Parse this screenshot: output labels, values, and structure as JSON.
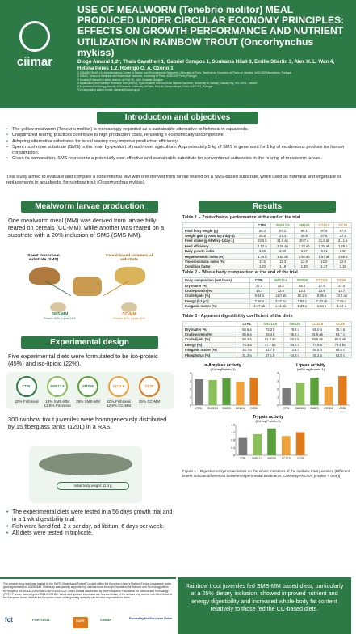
{
  "header": {
    "title": "USE OF MEALWORM (Tenebrio molitor) MEAL PRODUCED UNDER CIRCULAR ECONOMY PRINCIPLES: EFFECTS ON GROWTH PERFORMANCE AND NUTRIENT UTILIZATION IN RAINBOW TROUT (Oncorhynchus mykiss)",
    "authors": "Diogo Amaral 1,2*, Thais Cavalheri 1, Gabriel Campos 1, Soukaina Hilali 3, Emilie Stierlin 3, Alex H. L. Wan 4, Helena Peres 1,2, Rodrigo O. A. Ozório 1",
    "affiliations": [
      "1 CIIMAR/CIMAR LA, Interdisciplinary Centre of Marine and Environmental Research, University of Porto, Terminal de Cruzeiros do Porto de Leixões, 4450-208 Matosinhos, Portugal",
      "2 ICBAS, School of Medicine and Biomedical Sciences, University of Porto, 4050-097 Porto, Portugal",
      "3 Ecodesi, Research Center, Avenue du Port 36, 4000 Chatelet, Belgium",
      "4 Aquaculture and Nutrition Research Unit (ANRU), Ryan Institute and School of Natural Sciences, University of Galway, Galway city, H91 V8Y1, Ireland",
      "5 Department of Biology, Faculty of Sciences, University of Porto, Rua do Campo Alegre, Porto 4169-007, Portugal",
      "*Corresponding author e-mail: damaral@ciimar.up.pt"
    ],
    "logo": "ciimar"
  },
  "intro": {
    "title": "Introduction and objectives",
    "bullets": [
      "The yellow mealworm (Tenebrio molitor) is increasingly regarded as a sustainable alternative to fishmeal in aquafeeds.",
      "Unoptimized rearing practices contribute to high production costs, rendering it economically uncompetitive.",
      "Adopting alternative substrates for larval rearing may improve production efficiency.",
      "Spent mushroom substrate (SMS) is the main by-product of mushroom agriculture. Approximately 5 kg of SMS is generated for 1 kg of mushrooms produce for human consumption.",
      "Given its composition, SMS represents a potentially cost-effective and sustainable substitute for conventional substrates in the rearing of mealworm larvae."
    ],
    "aim": "This study aimed to evaluate and compare a conventional MM with one derived from larvae reared on a SMS-based substrate, when used as fishmeal and vegetable oil replacements in aquafeeds, for rainbow trout (Oncorhynchus mykiss)."
  },
  "larvae": {
    "title": "Mealworm larvae production",
    "text": "One mealworm meal (MM) was derived from larvae fully reared on cereals (CC-MM), while another was reared on a substrate with a 20% inclusion of SMS (SMS-MM).",
    "sms_label": "Spent mushroom substrate (SMS)",
    "cereal_label": "Cereal-based commercial substrate",
    "sms_mm": "SMS-MM",
    "sms_mm_comp": "Protein 53%; Lipids 24%",
    "cc_mm": "CC-MM",
    "cc_mm_comp": "Protein 51%; Lipids 32%"
  },
  "design": {
    "title": "Experimental design",
    "text1": "Five experimental diets were formulated to be iso-proteic (45%) and iso-lipidic (22%).",
    "diets": [
      "CTRL",
      "SMS12.5",
      "SMS25",
      "CC12.5",
      "CC25"
    ],
    "diet_desc": [
      "20% Fishmeal",
      "10% SMS-MM 12.5% Fishmeal",
      "25% SMS-MM",
      "10% Fishmeal 12.5% CC-MM",
      "25% CC-MM"
    ],
    "text2": "300 rainbow trout juveniles were homogeneously distributed by 15 fiberglass tanks (120L) in a RAS.",
    "weight": "Initial body weight: 11.4 g",
    "bullets": [
      "The experimental diets were tested in a 56 days growth trial and in a 1 wk digestibility trial.",
      "Fish were hand fed, 2 x per day, ad libitum, 6 days per week.",
      "All diets were tested in triplicate."
    ]
  },
  "results": {
    "title": "Results",
    "columns": [
      "",
      "CTRL",
      "SMS12.5",
      "SMS25",
      "CC12.5",
      "CC25"
    ],
    "table1": {
      "title": "Table 1 – Zootechnical performance at the end of the trial",
      "rows": [
        [
          "Final body weight (g)",
          "80.3",
          "87.2",
          "80.1",
          "87.9",
          "87.5"
        ],
        [
          "Weight gain (g ABW kg-1 day-1)",
          "26.8",
          "27.4",
          "26.8",
          "27.5",
          "27.4"
        ],
        [
          "Feed intake (g ABW kg-1 day-1)",
          "23.5 b",
          "21.5 ab",
          "20.7 a",
          "21.8 ab",
          "21.1 a"
        ],
        [
          "Feed efficiency",
          "1.12 a",
          "1.28 ab",
          "1.28 ab",
          "1.25 ab",
          "1.29 b"
        ],
        [
          "Daily growth index",
          "3.68",
          "3.89",
          "3.67",
          "3.91",
          "3.90"
        ],
        [
          "Hepatosomatic index (%)",
          "1.79 b",
          "1.62 ab",
          "1.56 ab",
          "1.57 ab",
          "1.55 a"
        ],
        [
          "Viscerosomatic index (%)",
          "13.6",
          "13.3",
          "12.8",
          "12.8",
          "12.8"
        ],
        [
          "Condition factor",
          "1.23",
          "1.19",
          "1.20",
          "1.17",
          "1.18"
        ]
      ]
    },
    "table2": {
      "title": "Table 2 – Whole body composition at the end of the trial",
      "header0": "Body composition (wet basis)",
      "rows": [
        [
          "Dry matter (%)",
          "27.4",
          "28.2",
          "28.8",
          "27.6",
          "27.5"
        ],
        [
          "Crude protein (%)",
          "14.3",
          "13.9",
          "13.8",
          "13.9",
          "13.7"
        ],
        [
          "Crude lipids (%)",
          "9.84 a",
          "11.0 ab",
          "12.1 b",
          "9.95 a",
          "10.7 ab"
        ],
        [
          "Energy (kJ g-1)",
          "7.16 a",
          "7.57 bc",
          "7.82 c",
          "7.20 ab",
          "7.65 c"
        ],
        [
          "Inorganic matter (%)",
          "1.47 ab",
          "1.41 ab",
          "1.33 a",
          "1.54 b",
          "1.34 a"
        ]
      ]
    },
    "table3": {
      "title": "Table 3 - Apparent digestibility coefficient of the diets",
      "rows": [
        [
          "Dry matter (%)",
          "68.6 a",
          "73.3 b",
          "79.6 c",
          "69.0 a",
          "75.4 b"
        ],
        [
          "Crude protein (%)",
          "90.9 a",
          "93.4 b",
          "95.0 c",
          "91.8 ab",
          "93.7 c"
        ],
        [
          "Crude lipids (%)",
          "88.4 a",
          "91.3 ab",
          "93.4 b",
          "88.8 ab",
          "92.9 ab"
        ],
        [
          "Energy (%)",
          "74.3 a",
          "77.7 ab",
          "83.0 c",
          "74.5 a",
          "79.4 bc"
        ],
        [
          "Inorganic matter (%)",
          "35.7 a",
          "53.7 b",
          "72.5 c",
          "50.5 b",
          "68.5 c"
        ],
        [
          "Phosphorus (%)",
          "31.3 a",
          "47.1 b",
          "64.0 c",
          "40.2 a",
          "62.0 c"
        ]
      ]
    },
    "figure_caption": "Figure 1 – Digestive enzymes activities on the whole intestines of the rainbow trout juveniles (Different letters indicate differences between experimental treatments (One-way ANOVA; p-value < 0.05))"
  },
  "chart_data": [
    {
      "type": "bar",
      "title": "α-Amylase activity",
      "ylabel": "(EU.mgProtein-1)",
      "categories": [
        "CTRL",
        "SMS12.5",
        "SMS25",
        "CC12.5",
        "CC25"
      ],
      "values": [
        3.2,
        3.1,
        3.3,
        2.9,
        3.4
      ],
      "ylim": [
        0,
        4
      ],
      "colors": [
        "#7a7a7a",
        "#8bbf5a",
        "#5aa03a",
        "#f0a13a",
        "#e07a1a"
      ]
    },
    {
      "type": "bar",
      "title": "Lipase activity",
      "ylabel": "(mEU.mgProtein-1)",
      "categories": [
        "CTRL",
        "SMS12.5",
        "SMS25",
        "CC12.5",
        "CC25"
      ],
      "values": [
        2.1,
        2.8,
        3.4,
        2.3,
        3.6
      ],
      "ylim": [
        0,
        4
      ],
      "colors": [
        "#7a7a7a",
        "#8bbf5a",
        "#5aa03a",
        "#f0a13a",
        "#e07a1a"
      ]
    },
    {
      "type": "bar",
      "title": "Trypsin activity",
      "ylabel": "(EU.mgProtein-1)",
      "categories": [
        "CTRL",
        "SMS12.5",
        "SMS25",
        "CC12.5",
        "CC25"
      ],
      "values": [
        0.9,
        1.1,
        1.4,
        1.0,
        1.2
      ],
      "ylim": [
        0,
        1.6
      ],
      "colors": [
        "#7a7a7a",
        "#8bbf5a",
        "#5aa03a",
        "#f0a13a",
        "#e07a1a"
      ]
    }
  ],
  "conclusion": "Rainbow trout juveniles fed SMS-MM based diets, particularly at a 25% dietary inclusion, showed improved nutrient and energy digestibility and increased whole-body fat content relatively to those fed the CC-based diets.",
  "funding": {
    "text": "The present study work was funded by the SAFE (SmartAqua4FutureE) project within the European Union's Horizon Europe programme under grant agreement no. 101084549. This study was partially supported by national funds through Foundation for Science and Technology within the scope of UIDB/04423/2020 and UIDP/04423/2020. Diogo Amaral was funded by the Portuguese Foundation for Science and Technology (FCT, I.P. under doctoral grant 2023.01075.BD. Views and opinions expressed are however those of the authors only and do not reflect those of the European Union. Neither the European Union or the granting authority can be held responsible for them.",
    "logos": [
      "fct",
      "PORTUGAL",
      "SAFE",
      "CIIMAR",
      "Funded by the European Union"
    ]
  }
}
